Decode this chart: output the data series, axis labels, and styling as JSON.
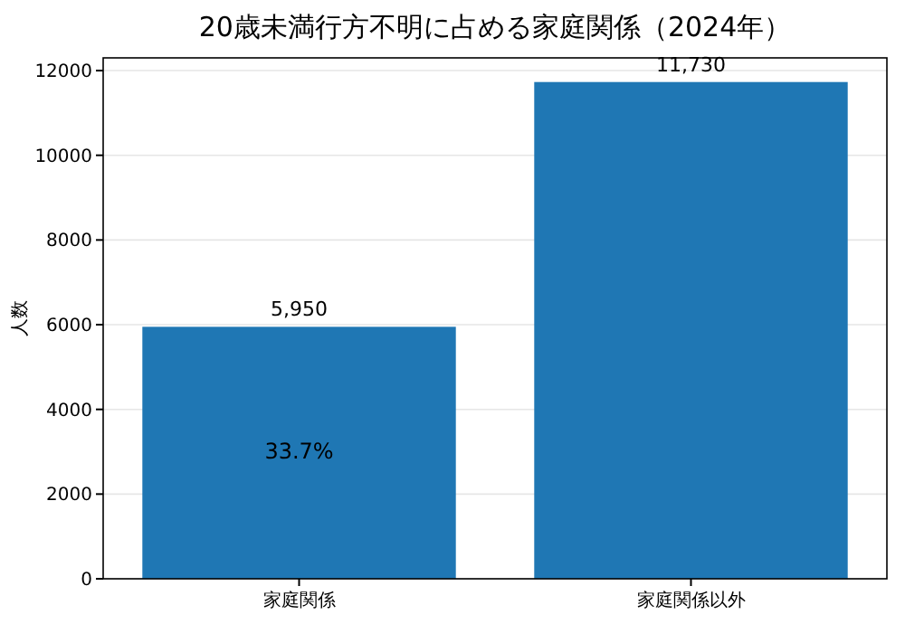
{
  "chart_data": {
    "type": "bar",
    "title": "20歳未満行方不明に占める家庭関係（2024年）",
    "ylabel": "人数",
    "categories": [
      "家庭関係",
      "家庭関係以外"
    ],
    "values": [
      5950,
      11730
    ],
    "value_labels": [
      "5,950",
      "11,730"
    ],
    "color": "#1f77b4",
    "ylim": [
      0,
      12300
    ],
    "yticks": [
      0,
      2000,
      4000,
      6000,
      8000,
      10000,
      12000
    ],
    "grid": "y",
    "annotations": [
      "33.7%"
    ]
  }
}
